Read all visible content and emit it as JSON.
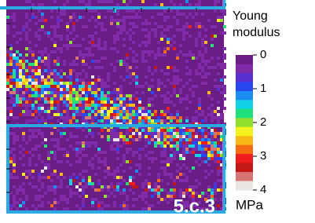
{
  "chart_data": {
    "type": "heatmap",
    "title": "Young modulus",
    "colorbar_label": "MPa",
    "annotation": "5.c.3",
    "ylim": [
      0,
      4
    ],
    "yticks": [
      0,
      1,
      2,
      3,
      4
    ],
    "colors": [
      "#6b1d86",
      "#7f2aa6",
      "#5a2fd0",
      "#2a46f0",
      "#1a8cf2",
      "#12d2e6",
      "#1fe07a",
      "#8ee02a",
      "#f2f21e",
      "#f6b814",
      "#f46b12",
      "#ee1c1c",
      "#c41818",
      "#d87474",
      "#ece6e2"
    ]
  }
}
